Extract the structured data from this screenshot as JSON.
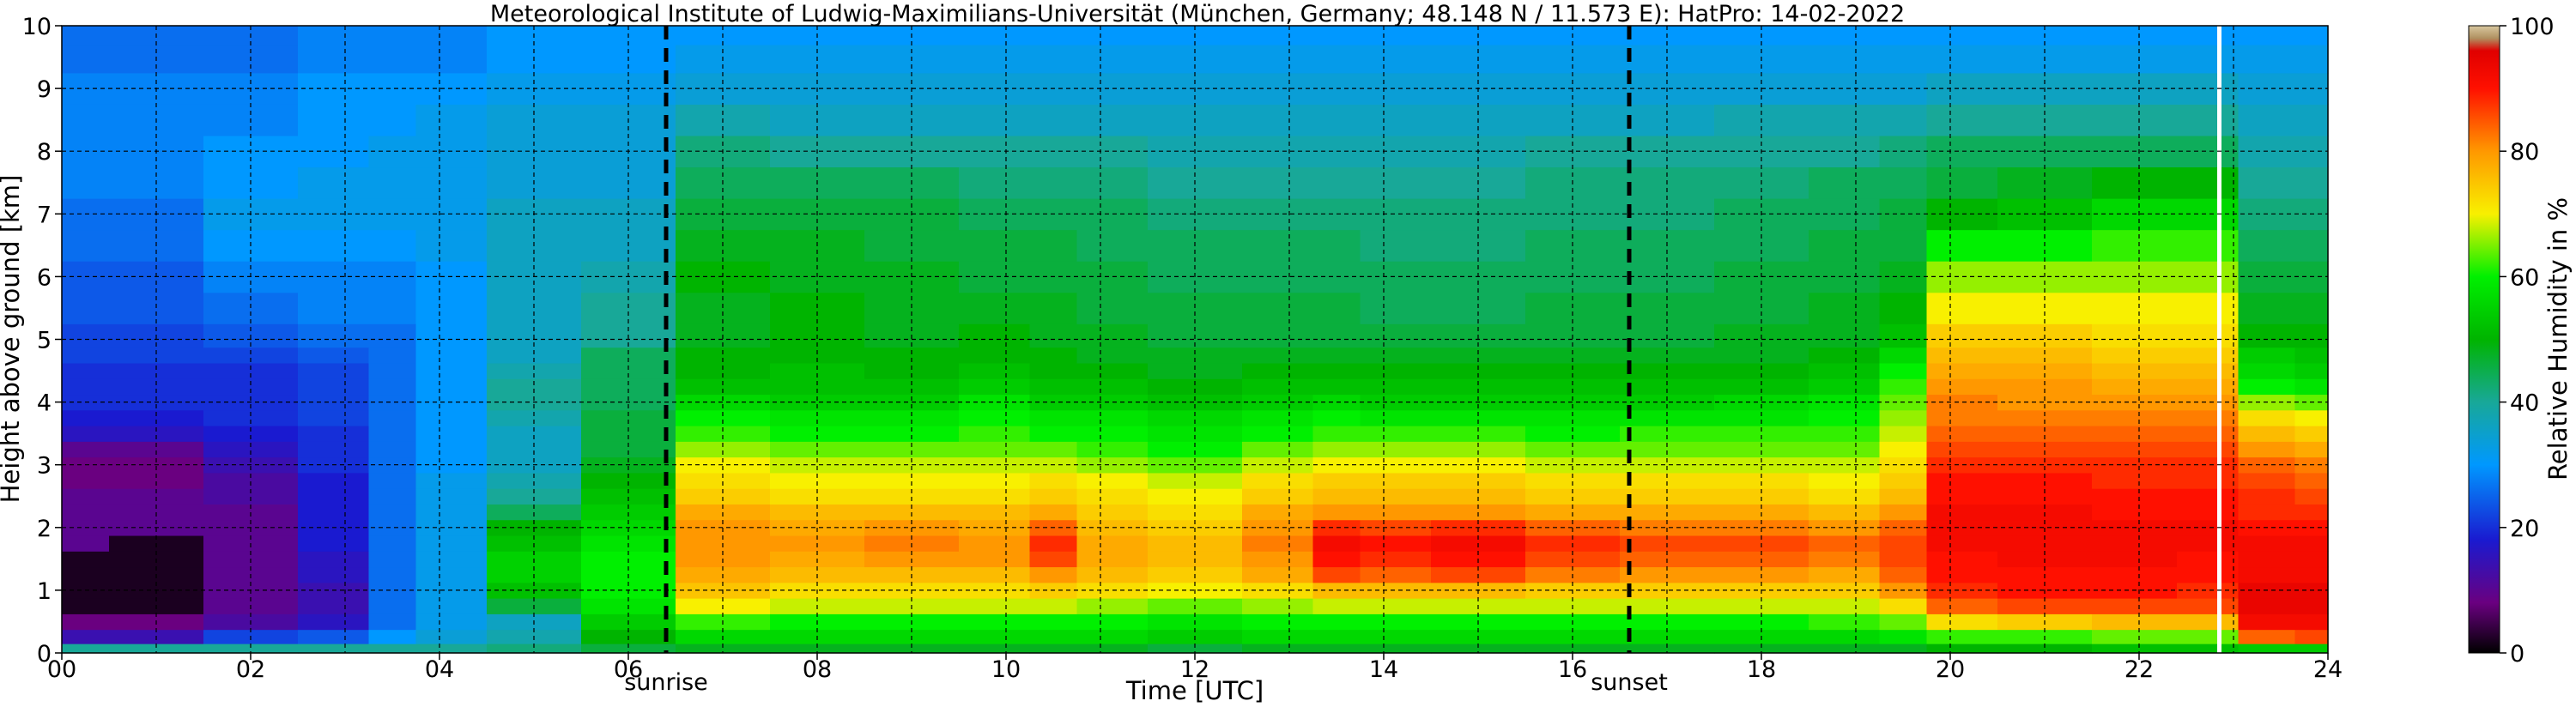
{
  "chart_data": {
    "type": "heatmap",
    "title": "Meteorological Institute of Ludwig-Maximilians-Universität (München, Germany; 48.148 N / 11.573 E):    HatPro: 14-02-2022",
    "xlabel": "Time [UTC]",
    "ylabel": "Height above ground [km]",
    "colorbar_label": "Relative Humidity in %",
    "xlim": [
      0,
      24
    ],
    "ylim": [
      0,
      10
    ],
    "clim": [
      0,
      100
    ],
    "x_ticks": [
      "00",
      "02",
      "04",
      "06",
      "08",
      "10",
      "12",
      "14",
      "16",
      "18",
      "20",
      "22",
      "24"
    ],
    "y_ticks": [
      "0",
      "1",
      "2",
      "3",
      "4",
      "5",
      "6",
      "7",
      "8",
      "9",
      "10"
    ],
    "colorbar_ticks": [
      "0",
      "20",
      "40",
      "60",
      "80",
      "100"
    ],
    "grid": true,
    "events": [
      {
        "name": "sunrise",
        "time": 6.4
      },
      {
        "name": "sunset",
        "time": 16.6
      }
    ],
    "missing_data_time": 22.85,
    "height_levels_km": [
      0.05,
      0.25,
      0.5,
      0.75,
      1.0,
      1.25,
      1.5,
      1.75,
      2.0,
      2.25,
      2.5,
      2.75,
      3.0,
      3.25,
      3.5,
      3.75,
      4.0,
      4.25,
      4.5,
      4.75,
      5.0,
      5.5,
      6.0,
      6.5,
      7.0,
      7.5,
      8.0,
      8.5,
      9.0,
      9.5,
      9.9
    ],
    "profile_times_utc": [
      0.0,
      1.0,
      2.0,
      3.0,
      3.5,
      4.0,
      5.0,
      6.0,
      7.0,
      8.0,
      9.0,
      10.0,
      10.5,
      11.0,
      12.0,
      13.0,
      13.5,
      14.0,
      15.0,
      16.0,
      17.0,
      18.0,
      19.0,
      19.5,
      20.0,
      21.0,
      22.0,
      22.8,
      23.3,
      24.0
    ],
    "profiles_rh_percent": [
      [
        40,
        14,
        8,
        2,
        2,
        2,
        2,
        10,
        10,
        10,
        10,
        8,
        8,
        10,
        16,
        18,
        20,
        20,
        20,
        22,
        22,
        24,
        24,
        26,
        26,
        28,
        28,
        28,
        28,
        26,
        26
      ],
      [
        40,
        14,
        8,
        2,
        2,
        2,
        2,
        2,
        10,
        10,
        10,
        8,
        8,
        10,
        16,
        18,
        20,
        20,
        20,
        22,
        22,
        24,
        24,
        26,
        26,
        28,
        28,
        28,
        28,
        26,
        26
      ],
      [
        40,
        22,
        12,
        10,
        10,
        10,
        10,
        10,
        10,
        10,
        12,
        12,
        14,
        16,
        18,
        20,
        20,
        20,
        20,
        22,
        24,
        26,
        28,
        30,
        32,
        30,
        30,
        28,
        28,
        26,
        26
      ],
      [
        40,
        24,
        16,
        14,
        14,
        16,
        16,
        18,
        18,
        18,
        18,
        18,
        20,
        20,
        20,
        22,
        22,
        22,
        22,
        24,
        26,
        28,
        28,
        30,
        32,
        32,
        30,
        30,
        30,
        28,
        28
      ],
      [
        40,
        30,
        26,
        26,
        26,
        26,
        26,
        26,
        26,
        26,
        26,
        26,
        26,
        26,
        26,
        26,
        26,
        26,
        26,
        26,
        26,
        28,
        28,
        30,
        32,
        32,
        32,
        30,
        30,
        28,
        28
      ],
      [
        40,
        34,
        32,
        32,
        32,
        32,
        32,
        32,
        32,
        32,
        32,
        32,
        30,
        30,
        30,
        30,
        30,
        30,
        30,
        30,
        30,
        30,
        30,
        32,
        32,
        32,
        32,
        32,
        30,
        28,
        28
      ],
      [
        42,
        38,
        36,
        46,
        52,
        55,
        55,
        52,
        50,
        44,
        40,
        38,
        36,
        36,
        36,
        38,
        40,
        40,
        38,
        36,
        36,
        36,
        36,
        36,
        36,
        34,
        34,
        34,
        32,
        30,
        30
      ],
      [
        46,
        50,
        54,
        58,
        60,
        60,
        60,
        58,
        56,
        54,
        52,
        50,
        48,
        46,
        46,
        46,
        44,
        44,
        44,
        44,
        40,
        40,
        38,
        36,
        36,
        34,
        34,
        34,
        32,
        30,
        30
      ],
      [
        48,
        56,
        62,
        70,
        75,
        78,
        80,
        80,
        80,
        78,
        74,
        72,
        70,
        66,
        62,
        60,
        56,
        52,
        50,
        50,
        48,
        48,
        50,
        48,
        46,
        44,
        42,
        38,
        34,
        32,
        30
      ],
      [
        48,
        56,
        60,
        68,
        72,
        76,
        78,
        80,
        78,
        76,
        72,
        70,
        68,
        64,
        60,
        58,
        54,
        52,
        52,
        50,
        50,
        50,
        48,
        48,
        46,
        44,
        40,
        36,
        34,
        32,
        30
      ],
      [
        48,
        56,
        60,
        68,
        72,
        76,
        80,
        82,
        80,
        76,
        72,
        70,
        68,
        64,
        60,
        58,
        54,
        52,
        50,
        50,
        48,
        48,
        48,
        46,
        46,
        44,
        40,
        36,
        34,
        32,
        30
      ],
      [
        48,
        56,
        60,
        68,
        72,
        76,
        80,
        80,
        78,
        76,
        72,
        70,
        68,
        64,
        62,
        60,
        58,
        54,
        52,
        50,
        50,
        48,
        46,
        46,
        44,
        42,
        40,
        36,
        34,
        32,
        30
      ],
      [
        48,
        56,
        60,
        68,
        74,
        80,
        86,
        88,
        84,
        78,
        74,
        72,
        68,
        64,
        60,
        58,
        54,
        52,
        50,
        50,
        48,
        48,
        46,
        46,
        44,
        42,
        40,
        36,
        34,
        32,
        30
      ],
      [
        48,
        56,
        60,
        66,
        72,
        76,
        78,
        78,
        76,
        74,
        72,
        70,
        66,
        62,
        60,
        58,
        54,
        52,
        50,
        48,
        48,
        46,
        46,
        44,
        44,
        42,
        40,
        36,
        34,
        32,
        30
      ],
      [
        46,
        54,
        58,
        64,
        70,
        74,
        76,
        76,
        74,
        72,
        70,
        68,
        64,
        60,
        58,
        56,
        52,
        50,
        48,
        48,
        46,
        46,
        44,
        44,
        42,
        40,
        38,
        36,
        34,
        32,
        30
      ],
      [
        48,
        56,
        60,
        66,
        72,
        78,
        80,
        82,
        80,
        78,
        74,
        72,
        68,
        64,
        60,
        58,
        54,
        52,
        50,
        48,
        46,
        46,
        44,
        44,
        42,
        40,
        38,
        36,
        34,
        32,
        30
      ],
      [
        48,
        56,
        60,
        68,
        76,
        86,
        90,
        92,
        88,
        80,
        76,
        74,
        70,
        66,
        62,
        60,
        56,
        52,
        50,
        48,
        46,
        46,
        44,
        44,
        42,
        40,
        38,
        36,
        34,
        32,
        30
      ],
      [
        48,
        56,
        60,
        68,
        76,
        84,
        88,
        90,
        86,
        80,
        76,
        74,
        70,
        66,
        62,
        58,
        54,
        52,
        50,
        48,
        46,
        44,
        44,
        42,
        42,
        40,
        38,
        36,
        34,
        32,
        30
      ],
      [
        48,
        56,
        60,
        68,
        76,
        86,
        90,
        92,
        88,
        80,
        76,
        74,
        70,
        66,
        62,
        58,
        54,
        52,
        50,
        48,
        46,
        44,
        44,
        42,
        42,
        40,
        38,
        36,
        34,
        32,
        30
      ],
      [
        48,
        56,
        60,
        68,
        74,
        82,
        86,
        88,
        84,
        78,
        74,
        72,
        68,
        64,
        60,
        58,
        54,
        52,
        50,
        48,
        46,
        46,
        44,
        44,
        42,
        42,
        40,
        36,
        34,
        32,
        30
      ],
      [
        48,
        56,
        60,
        68,
        74,
        80,
        84,
        86,
        82,
        78,
        74,
        72,
        68,
        64,
        62,
        58,
        54,
        52,
        50,
        48,
        46,
        46,
        44,
        44,
        42,
        42,
        40,
        36,
        34,
        32,
        30
      ],
      [
        48,
        56,
        60,
        68,
        74,
        80,
        84,
        86,
        82,
        78,
        74,
        72,
        68,
        64,
        62,
        58,
        56,
        52,
        50,
        48,
        48,
        46,
        46,
        44,
        44,
        42,
        40,
        38,
        34,
        32,
        30
      ],
      [
        48,
        56,
        62,
        68,
        74,
        78,
        82,
        84,
        80,
        76,
        72,
        70,
        68,
        64,
        62,
        60,
        58,
        54,
        52,
        50,
        48,
        48,
        46,
        46,
        44,
        44,
        40,
        38,
        34,
        32,
        30
      ],
      [
        48,
        58,
        64,
        72,
        80,
        84,
        86,
        86,
        84,
        80,
        76,
        74,
        72,
        70,
        68,
        66,
        64,
        62,
        60,
        56,
        52,
        50,
        48,
        46,
        46,
        44,
        42,
        38,
        34,
        32,
        30
      ],
      [
        50,
        62,
        72,
        84,
        88,
        90,
        90,
        92,
        92,
        92,
        90,
        90,
        88,
        86,
        84,
        82,
        82,
        80,
        78,
        76,
        74,
        70,
        66,
        60,
        50,
        46,
        44,
        40,
        36,
        32,
        30
      ],
      [
        50,
        62,
        74,
        86,
        90,
        90,
        92,
        92,
        92,
        92,
        90,
        90,
        88,
        86,
        84,
        82,
        80,
        80,
        78,
        76,
        74,
        70,
        66,
        60,
        52,
        48,
        44,
        40,
        36,
        32,
        30
      ],
      [
        52,
        64,
        76,
        86,
        90,
        90,
        92,
        92,
        92,
        90,
        90,
        88,
        88,
        86,
        84,
        82,
        80,
        78,
        76,
        74,
        72,
        70,
        66,
        62,
        56,
        50,
        44,
        40,
        36,
        32,
        30
      ],
      [
        52,
        64,
        76,
        86,
        88,
        90,
        90,
        92,
        92,
        90,
        90,
        88,
        88,
        86,
        84,
        82,
        80,
        78,
        76,
        74,
        72,
        70,
        66,
        62,
        56,
        50,
        44,
        40,
        36,
        32,
        30
      ],
      [
        54,
        84,
        92,
        94,
        94,
        92,
        92,
        92,
        90,
        88,
        88,
        86,
        84,
        80,
        76,
        72,
        66,
        60,
        56,
        54,
        50,
        48,
        46,
        44,
        42,
        40,
        38,
        36,
        34,
        32,
        30
      ],
      [
        54,
        86,
        92,
        94,
        94,
        92,
        92,
        92,
        90,
        88,
        86,
        84,
        82,
        78,
        74,
        70,
        64,
        58,
        54,
        52,
        50,
        48,
        46,
        44,
        42,
        40,
        38,
        36,
        34,
        32,
        30
      ]
    ]
  }
}
